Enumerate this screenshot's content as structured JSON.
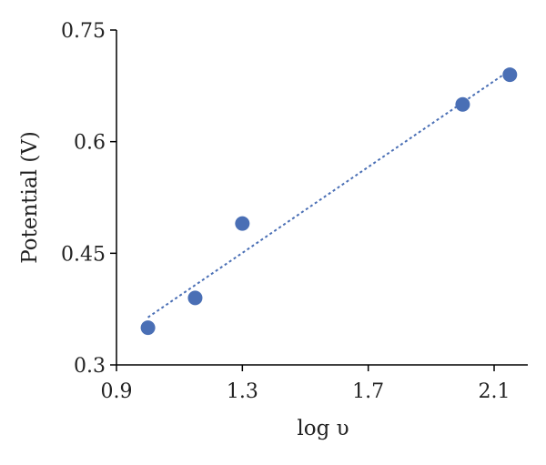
{
  "chart_data": {
    "type": "scatter",
    "title": "",
    "xlabel": "log υ",
    "ylabel": "Potential (V)",
    "xlim": [
      0.9,
      2.2
    ],
    "ylim": [
      0.3,
      0.75
    ],
    "xticks": [
      "0.9",
      "1.3",
      "1.7",
      "2.1"
    ],
    "yticks": [
      "0.3",
      "0.45",
      "0.6",
      "0.75"
    ],
    "grid": false,
    "points": [
      {
        "x": 1.0,
        "y": 0.35
      },
      {
        "x": 1.15,
        "y": 0.39
      },
      {
        "x": 1.3,
        "y": 0.49
      },
      {
        "x": 2.0,
        "y": 0.65
      },
      {
        "x": 2.15,
        "y": 0.69
      }
    ],
    "trendline": {
      "type": "linear",
      "style": "dotted",
      "x_start": 1.0,
      "x_end": 2.15
    },
    "marker_color": "#4a6fb5",
    "trendline_color": "#4a6fb5"
  }
}
